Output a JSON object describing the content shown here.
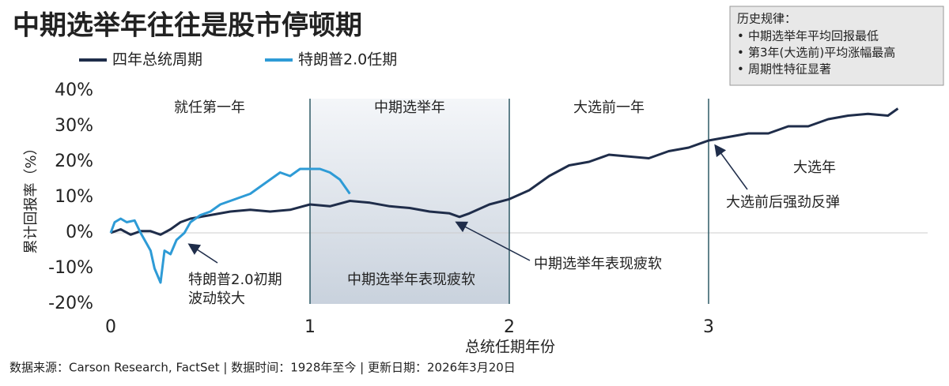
{
  "chart_data": {
    "type": "line",
    "title": "中期选举年往往是股市停顿期",
    "y_label": "累计回报率（%）",
    "x_label": "总统任期年份",
    "source": "数据来源：Carson Research, FactSet | 数据时间：1928年至今 | 更新日期：2026年3月20日",
    "info_box": {
      "title": "历史规律：",
      "items": [
        "中期选举年平均回报最低",
        "第3年(大选前)平均涨幅最高",
        "周期性特征显著"
      ]
    },
    "sections": [
      "就任第一年",
      "中期选举年",
      "大选前一年",
      "大选年"
    ],
    "annotations": [
      [
        "特朗普2.0初期",
        "波动较大"
      ],
      [
        "中期选举年表现疲软"
      ],
      [
        "中期选举年表现疲软"
      ],
      [
        "大选前后强劲反弹"
      ]
    ],
    "xlim": [
      0,
      4
    ],
    "xticks": [
      0,
      1,
      2,
      3
    ],
    "ylim": [
      -20,
      40
    ],
    "yticks": [
      {
        "value": -20,
        "label": "-20%"
      },
      {
        "value": -10,
        "label": "-10%"
      },
      {
        "value": 0,
        "label": "0%"
      },
      {
        "value": 10,
        "label": "10%"
      },
      {
        "value": 20,
        "label": "20%"
      },
      {
        "value": 30,
        "label": "30%"
      },
      {
        "value": 40,
        "label": "40%"
      }
    ],
    "zero_line": true,
    "series": [
      {
        "name": "四年总统周期",
        "color": "#1f2d4a",
        "x": [
          0,
          0.05,
          0.1,
          0.15,
          0.2,
          0.25,
          0.3,
          0.35,
          0.4,
          0.5,
          0.6,
          0.7,
          0.8,
          0.9,
          1.0,
          1.1,
          1.2,
          1.3,
          1.4,
          1.5,
          1.6,
          1.7,
          1.75,
          1.8,
          1.9,
          2.0,
          2.1,
          2.2,
          2.3,
          2.4,
          2.5,
          2.6,
          2.7,
          2.8,
          2.9,
          3.0,
          3.1,
          3.2,
          3.3,
          3.4,
          3.5,
          3.6,
          3.7,
          3.8,
          3.9,
          3.95
        ],
        "values": [
          0,
          1,
          -0.5,
          0.5,
          0.5,
          -0.5,
          1,
          3,
          4,
          5,
          6,
          6.5,
          6,
          6.5,
          8,
          7.5,
          9,
          8.5,
          7.5,
          7,
          6,
          5.5,
          4.5,
          5.5,
          8,
          9.5,
          12,
          16,
          19,
          20,
          22,
          21.5,
          21,
          23,
          24,
          26,
          27,
          28,
          28,
          30,
          30,
          32,
          33,
          33.5,
          33,
          35
        ]
      },
      {
        "name": "特朗普2.0任期",
        "color": "#2e9bd6",
        "x": [
          0,
          0.02,
          0.05,
          0.08,
          0.12,
          0.15,
          0.18,
          0.2,
          0.22,
          0.25,
          0.27,
          0.3,
          0.33,
          0.37,
          0.4,
          0.45,
          0.5,
          0.55,
          0.6,
          0.65,
          0.7,
          0.75,
          0.8,
          0.85,
          0.9,
          0.95,
          1.0,
          1.05,
          1.1,
          1.15,
          1.2
        ],
        "values": [
          0,
          3,
          4,
          3,
          3.5,
          0,
          -3,
          -5,
          -10,
          -14,
          -5,
          -6,
          -2,
          0,
          3,
          5,
          6,
          8,
          9,
          10,
          11,
          13,
          15,
          17,
          16,
          18,
          18,
          18,
          17,
          15,
          11
        ]
      }
    ]
  }
}
